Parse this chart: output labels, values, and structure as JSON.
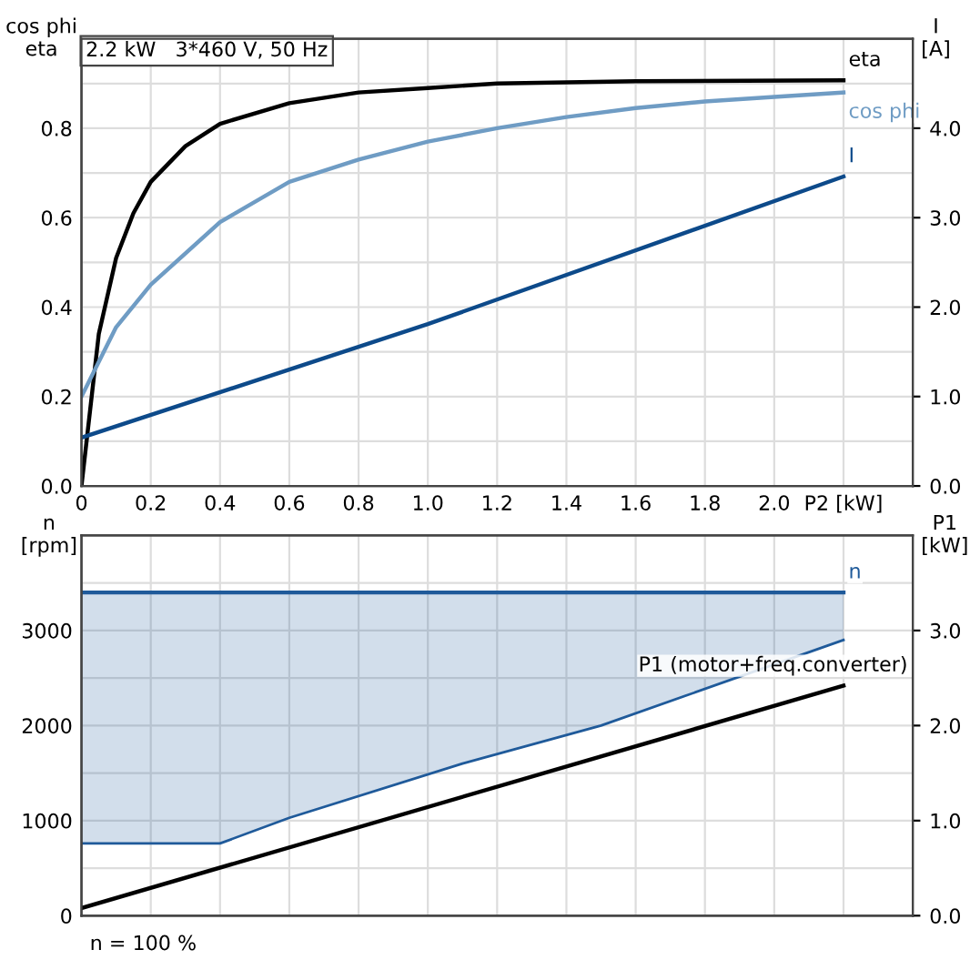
{
  "chart_data": [
    {
      "type": "line",
      "title": "2.2 kW   3*460 V, 50 Hz",
      "ylabel": "cos phi\neta",
      "y2label": "I\n[A]",
      "xlim": [
        0,
        2.4
      ],
      "xticks": [
        {
          "value": 0,
          "label": "0"
        },
        0.2,
        0.4,
        0.6,
        0.8,
        {
          "value": 1.0,
          "label": "1.0"
        },
        1.2,
        1.4,
        1.6,
        1.8,
        {
          "value": 2.0,
          "label": "2.0"
        },
        {
          "value": 2.2,
          "label": "P2 [kW]"
        }
      ],
      "ylim": [
        0,
        1.0
      ],
      "yticks": [
        {
          "value": 0,
          "label": "0.0"
        },
        {
          "value": 0.1,
          "label": null
        },
        0.2,
        {
          "value": 0.3,
          "label": null
        },
        0.4,
        {
          "value": 0.5,
          "label": null
        },
        0.6,
        {
          "value": 0.7,
          "label": null
        },
        0.8,
        {
          "value": 0.9,
          "label": null
        }
      ],
      "y2lim": [
        0,
        5.0
      ],
      "y2ticks": [
        {
          "value": 0,
          "label": "0.0"
        },
        {
          "value": 1,
          "label": "1.0"
        },
        {
          "value": 2,
          "label": "2.0"
        },
        {
          "value": 3,
          "label": "3.0"
        },
        {
          "value": 4,
          "label": "4.0"
        }
      ],
      "grid": true,
      "legend": false,
      "series": [
        {
          "name": "eta",
          "color": "#000000",
          "x": [
            0,
            0.05,
            0.1,
            0.15,
            0.2,
            0.3,
            0.4,
            0.6,
            0.8,
            1.0,
            1.2,
            1.6,
            2.2
          ],
          "values": [
            0,
            0.34,
            0.51,
            0.61,
            0.68,
            0.76,
            0.81,
            0.856,
            0.88,
            0.89,
            0.9,
            0.905,
            0.907
          ]
        },
        {
          "name": "cos phi",
          "color": "#6f9cc4",
          "x": [
            0,
            0.1,
            0.2,
            0.4,
            0.6,
            0.8,
            1.0,
            1.2,
            1.4,
            1.6,
            1.8,
            2.0,
            2.2
          ],
          "values": [
            0.2,
            0.355,
            0.45,
            0.59,
            0.68,
            0.73,
            0.77,
            0.8,
            0.825,
            0.845,
            0.86,
            0.87,
            0.88
          ]
        },
        {
          "name": "I",
          "color": "#0d4a8a",
          "axis": "y2",
          "x": [
            0,
            1.0,
            2.2
          ],
          "values": [
            0.54,
            1.81,
            3.46
          ]
        }
      ]
    },
    {
      "type": "line",
      "ylabel": "n\n[rpm]",
      "y2label": "P1\n[kW]",
      "tick_labels": "y",
      "annotations": [
        "n = 100 %"
      ],
      "xlim": [
        0,
        2.4
      ],
      "xticks": [
        0,
        0.2,
        0.4,
        0.6,
        0.8,
        1.0,
        1.2,
        1.4,
        1.6,
        1.8,
        2.0,
        2.2
      ],
      "ylim": [
        0,
        4000
      ],
      "yticks": [
        0,
        {
          "value": 500,
          "label": null
        },
        1000,
        {
          "value": 1500,
          "label": null
        },
        2000,
        {
          "value": 2500,
          "label": null
        },
        3000,
        {
          "value": 3500,
          "label": null
        }
      ],
      "y2lim": [
        0,
        4.0
      ],
      "y2ticks": [
        {
          "value": 0,
          "label": "0.0"
        },
        {
          "value": 1,
          "label": "1.0"
        },
        {
          "value": 2,
          "label": "2.0"
        },
        {
          "value": 3,
          "label": "3.0"
        }
      ],
      "grid": true,
      "legend": false,
      "series": [
        {
          "name": "n",
          "color": "#1f5a9a",
          "x": [
            0,
            0.4,
            0.6,
            1.1,
            1.5,
            2.2
          ],
          "values": [
            3400,
            3400,
            3400,
            3400,
            3400,
            3400
          ],
          "lower": [
            760,
            760,
            1030,
            1600,
            2000,
            2900
          ],
          "upper": [
            3400,
            3400,
            3400,
            3400,
            3400,
            3400
          ]
        },
        {
          "name": "P1 (motor+freq.converter)",
          "color": "#000000",
          "axis": "y2",
          "x": [
            0,
            2.2
          ],
          "values": [
            0.08,
            2.42
          ]
        }
      ]
    }
  ]
}
